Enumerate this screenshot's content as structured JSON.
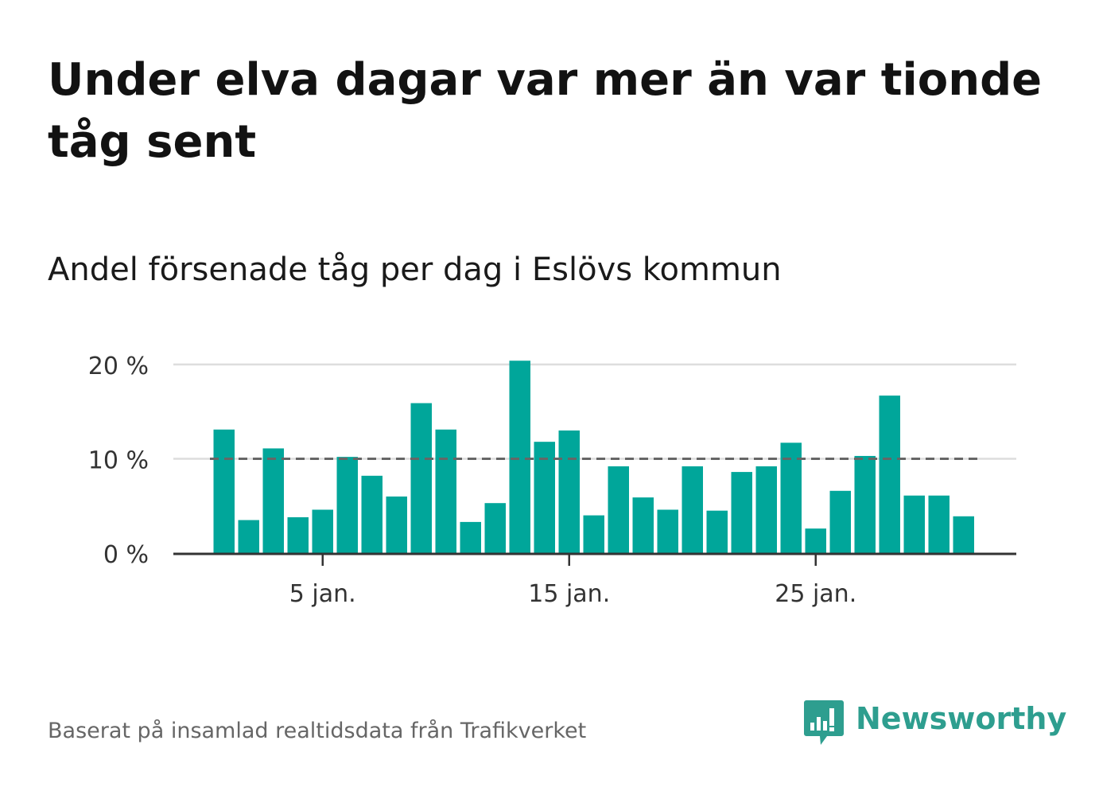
{
  "title": "Under elva dagar var mer än var tionde tåg sent",
  "subtitle": "Andel försenade tåg per dag i Eslövs kommun",
  "source": "Baserat på insamlad realtidsdata från Trafikverket",
  "logo": {
    "text": "Newsworthy",
    "icon": "newsworthy-chart-bubble-icon",
    "color": "#2e9e8f"
  },
  "colors": {
    "bar": "#00a69a",
    "grid": "#dddddd",
    "axis": "#333333",
    "reference": "#666666"
  },
  "chart_data": {
    "type": "bar",
    "x": [
      "1 jan.",
      "2 jan.",
      "3 jan.",
      "4 jan.",
      "5 jan.",
      "6 jan.",
      "7 jan.",
      "8 jan.",
      "9 jan.",
      "10 jan.",
      "11 jan.",
      "12 jan.",
      "13 jan.",
      "14 jan.",
      "15 jan.",
      "16 jan.",
      "17 jan.",
      "18 jan.",
      "19 jan.",
      "20 jan.",
      "21 jan.",
      "22 jan.",
      "23 jan.",
      "24 jan.",
      "25 jan.",
      "26 jan.",
      "27 jan.",
      "28 jan.",
      "29 jan.",
      "30 jan.",
      "31 jan."
    ],
    "values": [
      13.1,
      3.5,
      11.1,
      3.8,
      4.6,
      10.2,
      8.2,
      6.0,
      15.9,
      13.1,
      3.3,
      5.3,
      20.4,
      11.8,
      13.0,
      4.0,
      9.2,
      5.9,
      4.6,
      9.2,
      4.5,
      8.6,
      9.2,
      11.7,
      2.6,
      6.6,
      10.3,
      16.7,
      6.1,
      6.1,
      3.9
    ],
    "ylim": [
      0,
      20.5
    ],
    "yticks": [
      0,
      10,
      20
    ],
    "ytick_labels": [
      "0 %",
      "10 %",
      "20 %"
    ],
    "xtick_labels": [
      {
        "index": 4,
        "label": "5 jan."
      },
      {
        "index": 14,
        "label": "15 jan."
      },
      {
        "index": 24,
        "label": "25 jan."
      }
    ],
    "reference_line": 10,
    "grid": true,
    "xlabel": "",
    "ylabel": ""
  }
}
